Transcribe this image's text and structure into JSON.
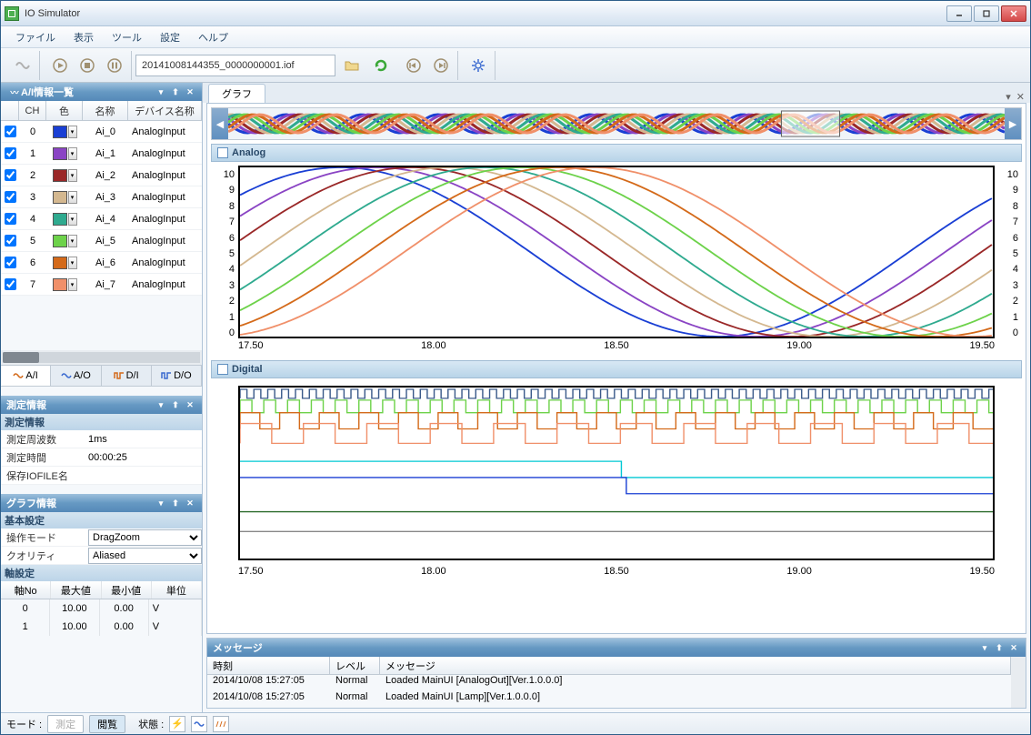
{
  "window": {
    "title": "IO Simulator"
  },
  "menu": {
    "items": [
      "ファイル",
      "表示",
      "ツール",
      "設定",
      "ヘルプ"
    ]
  },
  "toolbar": {
    "file_path": "20141008144355_0000000001.iof"
  },
  "ai_panel": {
    "title": "A/I情報一覧",
    "cols": {
      "ch": "CH",
      "color": "色",
      "name": "名称",
      "device": "デバイス名称"
    },
    "rows": [
      {
        "ch": "0",
        "color": "#1a3fd4",
        "name": "Ai_0",
        "device": "AnalogInput"
      },
      {
        "ch": "1",
        "color": "#8a44c4",
        "name": "Ai_1",
        "device": "AnalogInput"
      },
      {
        "ch": "2",
        "color": "#9a2828",
        "name": "Ai_2",
        "device": "AnalogInput"
      },
      {
        "ch": "3",
        "color": "#d4b890",
        "name": "Ai_3",
        "device": "AnalogInput"
      },
      {
        "ch": "4",
        "color": "#2faa8f",
        "name": "Ai_4",
        "device": "AnalogInput"
      },
      {
        "ch": "5",
        "color": "#6dd24a",
        "name": "Ai_5",
        "device": "AnalogInput"
      },
      {
        "ch": "6",
        "color": "#d46a1a",
        "name": "Ai_6",
        "device": "AnalogInput"
      },
      {
        "ch": "7",
        "color": "#f0906a",
        "name": "Ai_7",
        "device": "AnalogInput"
      }
    ]
  },
  "side_tabs": {
    "ai": "A/I",
    "ao": "A/O",
    "di": "D/I",
    "do": "D/O"
  },
  "measure_panel": {
    "title": "測定情報",
    "subtitle": "測定情報",
    "freq_label": "測定周波数",
    "freq_value": "1ms",
    "time_label": "測定時間",
    "time_value": "00:00:25",
    "iofile_label": "保存IOFILE名",
    "iofile_value": ""
  },
  "graph_info": {
    "title": "グラフ情報",
    "basic_head": "基本設定",
    "mode_label": "操作モード",
    "mode_value": "DragZoom",
    "quality_label": "クオリティ",
    "quality_value": "Aliased",
    "axis_head": "軸設定",
    "cols": {
      "no": "軸No",
      "max": "最大値",
      "min": "最小値",
      "unit": "単位"
    },
    "rows": [
      {
        "no": "0",
        "max": "10.00",
        "min": "0.00",
        "unit": "V"
      },
      {
        "no": "1",
        "max": "10.00",
        "min": "0.00",
        "unit": "V"
      }
    ]
  },
  "graph_tab": "グラフ",
  "analog": {
    "title": "Analog",
    "ylim": [
      0,
      10
    ],
    "yticks": [
      "10",
      "9",
      "8",
      "7",
      "6",
      "5",
      "4",
      "3",
      "2",
      "1",
      "0"
    ],
    "xticks": [
      "17.50",
      "18.00",
      "18.50",
      "19.00",
      "19.50"
    ],
    "xlim": [
      17.2,
      19.6
    ],
    "series_colors": [
      "#1a3fd4",
      "#8a44c4",
      "#9a2828",
      "#d4b890",
      "#2faa8f",
      "#6dd24a",
      "#d46a1a",
      "#f0906a"
    ],
    "phase_shifts": [
      0,
      0.3,
      0.6,
      0.9,
      1.2,
      1.5,
      1.8,
      2.1
    ]
  },
  "digital": {
    "title": "Digital",
    "xticks": [
      "17.50",
      "18.00",
      "18.50",
      "19.00",
      "19.50"
    ],
    "colors": [
      "#3a5a8a",
      "#6dd24a",
      "#d46a1a",
      "#f0906a",
      "#00c8d4",
      "#1a3fd4",
      "#2a6a2a",
      "#888"
    ]
  },
  "messages": {
    "title": "メッセージ",
    "cols": {
      "time": "時刻",
      "level": "レベル",
      "msg": "メッセージ"
    },
    "rows": [
      {
        "time": "2014/10/08 15:27:05",
        "level": "Normal",
        "msg": "Loaded MainUI [AnalogOut][Ver.1.0.0.0]"
      },
      {
        "time": "2014/10/08 15:27:05",
        "level": "Normal",
        "msg": "Loaded MainUI [Lamp][Ver.1.0.0.0]"
      }
    ]
  },
  "status": {
    "mode_label": "モード :",
    "measure_btn": "測定",
    "browse_btn": "閲覧",
    "state_label": "状態 :"
  }
}
